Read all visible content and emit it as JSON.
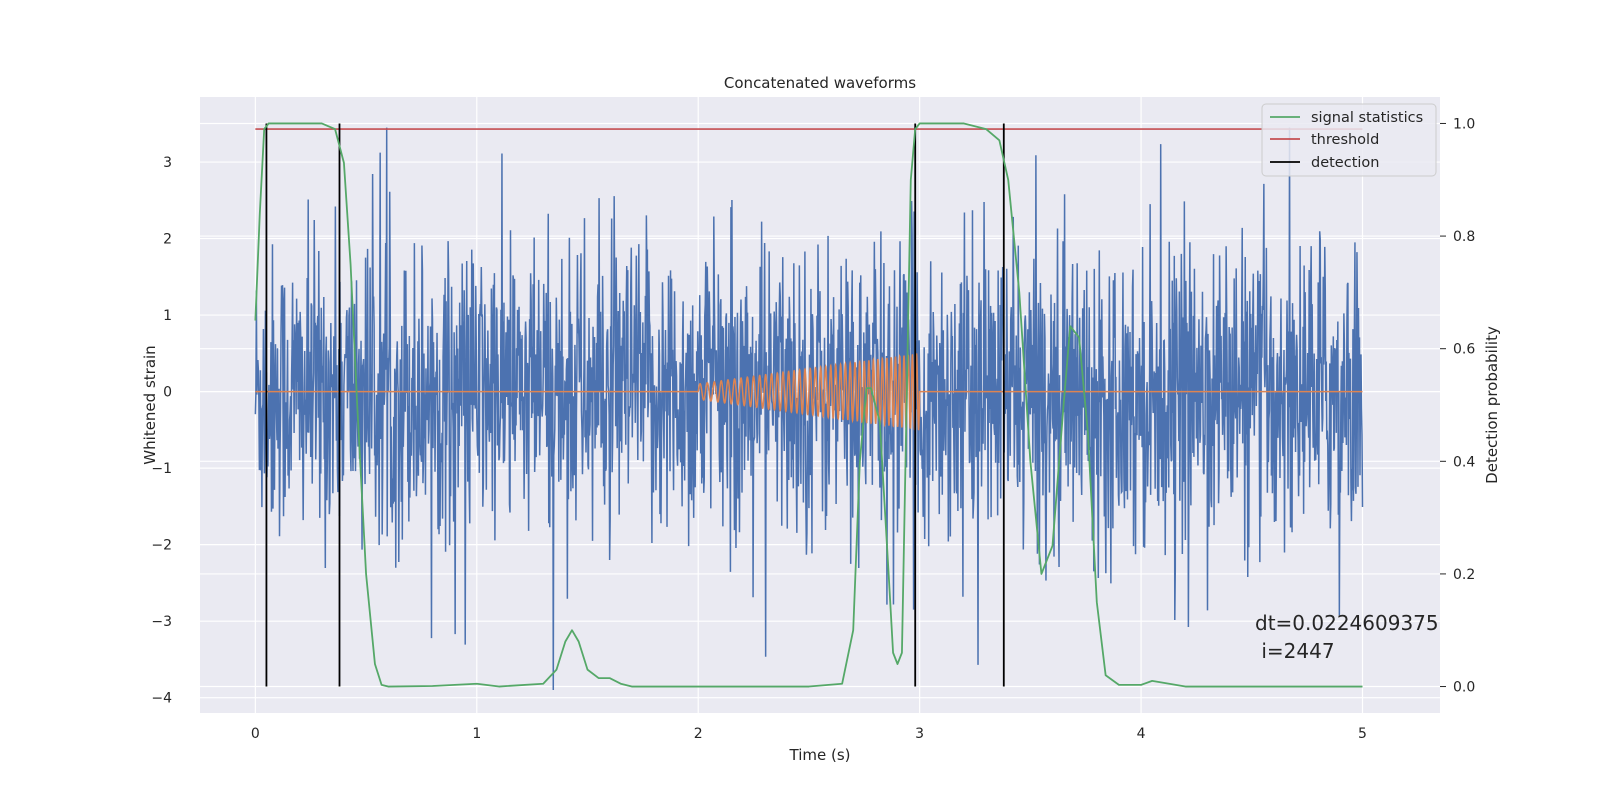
{
  "chart_data": {
    "type": "line",
    "title": "Concatenated waveforms",
    "xlabel": "Time (s)",
    "ylabel": "Whitened strain",
    "y2label": "Detection probability",
    "xlim": [
      -0.25,
      5.35
    ],
    "ylim": [
      -4.2,
      3.85
    ],
    "y2lim": [
      -0.047,
      1.047
    ],
    "xticks": [
      0,
      1,
      2,
      3,
      4,
      5
    ],
    "yticks": [
      -4,
      -3,
      -2,
      -1,
      0,
      1,
      2,
      3
    ],
    "y2ticks": [
      0.0,
      0.2,
      0.4,
      0.6,
      0.8,
      1.0
    ],
    "ytick_labels": [
      "−4",
      "−3",
      "−2",
      "−1",
      "0",
      "1",
      "2",
      "3"
    ],
    "y2tick_labels": [
      "0.0",
      "0.2",
      "0.4",
      "0.6",
      "0.8",
      "1.0"
    ],
    "grid": true,
    "legend_position": "top-right",
    "colors": {
      "background": "#eaeaf2",
      "grid": "#ffffff",
      "strain": "#4c72b0",
      "injection": "#dd8452",
      "signal_statistics": "#55a868",
      "threshold": "#c44e52",
      "detection": "#000000"
    },
    "series": [
      {
        "name": "signal statistics",
        "axis": "right",
        "x": [
          0.0,
          0.02,
          0.04,
          0.06,
          0.08,
          0.1,
          0.2,
          0.3,
          0.36,
          0.4,
          0.43,
          0.46,
          0.5,
          0.54,
          0.57,
          0.6,
          0.8,
          1.0,
          1.1,
          1.3,
          1.36,
          1.4,
          1.43,
          1.46,
          1.5,
          1.55,
          1.6,
          1.65,
          1.7,
          2.0,
          2.5,
          2.65,
          2.7,
          2.73,
          2.76,
          2.78,
          2.82,
          2.86,
          2.88,
          2.9,
          2.92,
          2.96,
          2.98,
          3.0,
          3.2,
          3.3,
          3.36,
          3.4,
          3.45,
          3.5,
          3.55,
          3.6,
          3.65,
          3.68,
          3.72,
          3.76,
          3.8,
          3.84,
          3.9,
          4.0,
          4.05,
          4.2,
          5.0
        ],
        "values": [
          0.65,
          0.84,
          0.99,
          1.0,
          1.0,
          1.0,
          1.0,
          1.0,
          0.99,
          0.93,
          0.75,
          0.5,
          0.2,
          0.04,
          0.003,
          0.0,
          0.001,
          0.005,
          0.0,
          0.005,
          0.03,
          0.08,
          0.1,
          0.08,
          0.03,
          0.015,
          0.015,
          0.005,
          0.0,
          0.0,
          0.0,
          0.005,
          0.1,
          0.4,
          0.53,
          0.53,
          0.47,
          0.2,
          0.06,
          0.04,
          0.06,
          0.9,
          0.99,
          1.0,
          1.0,
          0.99,
          0.97,
          0.9,
          0.7,
          0.4,
          0.2,
          0.25,
          0.5,
          0.64,
          0.62,
          0.45,
          0.15,
          0.02,
          0.003,
          0.003,
          0.01,
          0.0,
          0.0
        ]
      },
      {
        "name": "threshold",
        "axis": "right",
        "x": [
          0.0,
          5.0
        ],
        "values": [
          0.99,
          0.99
        ]
      },
      {
        "name": "detection",
        "axis": "right",
        "type": "vlines",
        "x": [
          0.05,
          0.38,
          2.98,
          3.38
        ],
        "range": [
          0.0,
          1.0
        ]
      },
      {
        "name": "",
        "axis": "left",
        "description": "whitened strain noise, 0–5 s, values mostly within −2.5..2.5 with peaks up to 3.4 and down to −3.9",
        "x_range": [
          0.0,
          5.0
        ],
        "envelope": [
          -3.9,
          3.45
        ]
      },
      {
        "name": "",
        "axis": "left",
        "description": "injected chirp waveform, zero outside 2.0–3.0 s, amplitude rising from 0.1 to 0.5",
        "x_range": [
          0.0,
          5.0
        ],
        "chirp_range": [
          2.0,
          3.0
        ],
        "amplitude_range": [
          0.1,
          0.5
        ]
      }
    ],
    "annotation": {
      "line1": "dt=0.0224609375",
      "line2": " i=2447"
    }
  }
}
